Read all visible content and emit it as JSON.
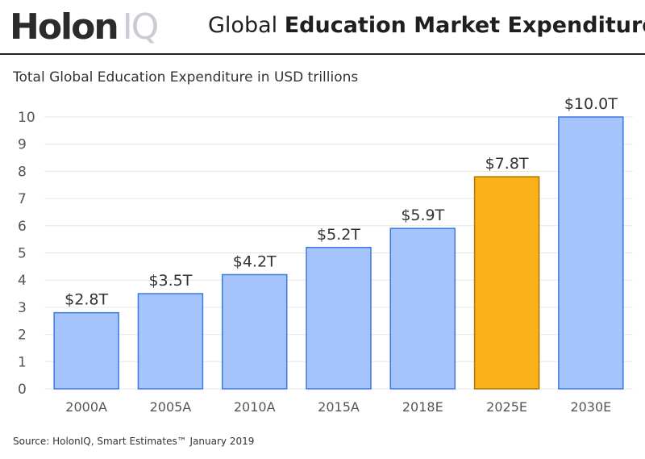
{
  "header": {
    "logo_part1": "Holon",
    "logo_part2": "IQ",
    "title_light": "Global ",
    "title_bold": "Education Market Expenditure"
  },
  "footer": {
    "source": "Source: HolonIQ, Smart Estimates™ January 2019"
  },
  "colors": {
    "bar_default": "#a5c4fb",
    "bar_default_stroke": "#3c78e6",
    "bar_highlight": "#fbb21a",
    "bar_highlight_stroke": "#b27300",
    "grid": "#e6e6e6"
  },
  "chart_data": {
    "type": "bar",
    "title": "Total Global Education Expenditure in USD trillions",
    "xlabel": "",
    "ylabel": "",
    "categories": [
      "2000A",
      "2005A",
      "2010A",
      "2015A",
      "2018E",
      "2025E",
      "2030E"
    ],
    "values": [
      2.8,
      3.5,
      4.2,
      5.2,
      5.9,
      7.8,
      10.0
    ],
    "data_labels": [
      "$2.8T",
      "$3.5T",
      "$4.2T",
      "$5.2T",
      "$5.9T",
      "$7.8T",
      "$10.0T"
    ],
    "highlight_category": "2025E",
    "ylim": [
      0,
      10
    ],
    "yticks": [
      0,
      1,
      2,
      3,
      4,
      5,
      6,
      7,
      8,
      9,
      10
    ],
    "grid": true,
    "legend": "none"
  }
}
